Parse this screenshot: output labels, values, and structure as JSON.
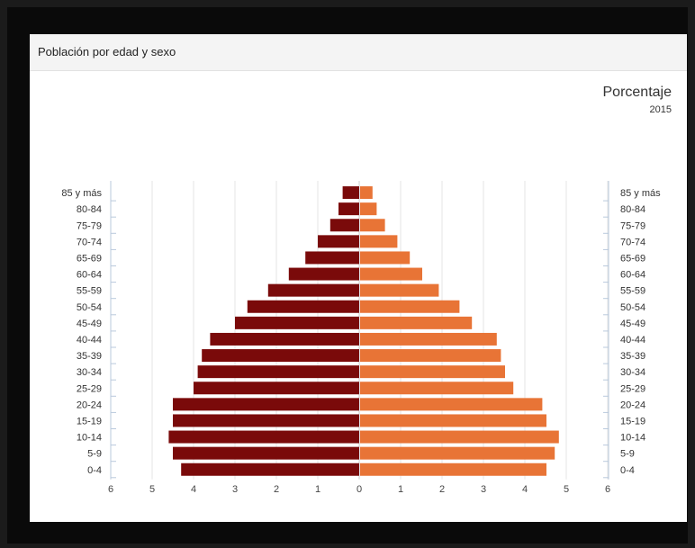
{
  "panel": {
    "title": "Población por edad y sexo",
    "unit": "Porcentaje",
    "year": "2015"
  },
  "chart_data": {
    "type": "bar",
    "orientation": "horizontal-population-pyramid",
    "categories": [
      "85 y más",
      "80-84",
      "75-79",
      "70-74",
      "65-69",
      "60-64",
      "55-59",
      "50-54",
      "45-49",
      "40-44",
      "35-39",
      "30-34",
      "25-29",
      "20-24",
      "15-19",
      "10-14",
      "5-9",
      "0-4"
    ],
    "series": [
      {
        "color": "#7a0a0a",
        "side": "left",
        "values": [
          0.4,
          0.5,
          0.7,
          1.0,
          1.3,
          1.7,
          2.2,
          2.7,
          3.0,
          3.6,
          3.8,
          3.9,
          4.0,
          4.5,
          4.5,
          4.6,
          4.5,
          4.3
        ]
      },
      {
        "color": "#e87436",
        "side": "right",
        "values": [
          0.3,
          0.4,
          0.6,
          0.9,
          1.2,
          1.5,
          1.9,
          2.4,
          2.7,
          3.3,
          3.4,
          3.5,
          3.7,
          4.4,
          4.5,
          4.8,
          4.7,
          4.5
        ]
      }
    ],
    "x_ticks": [
      "6",
      "5",
      "4",
      "3",
      "2",
      "1",
      "0",
      "1",
      "2",
      "3",
      "4",
      "5",
      "6"
    ],
    "xlim": [
      -6,
      6
    ],
    "grid": true,
    "legend": "none"
  }
}
